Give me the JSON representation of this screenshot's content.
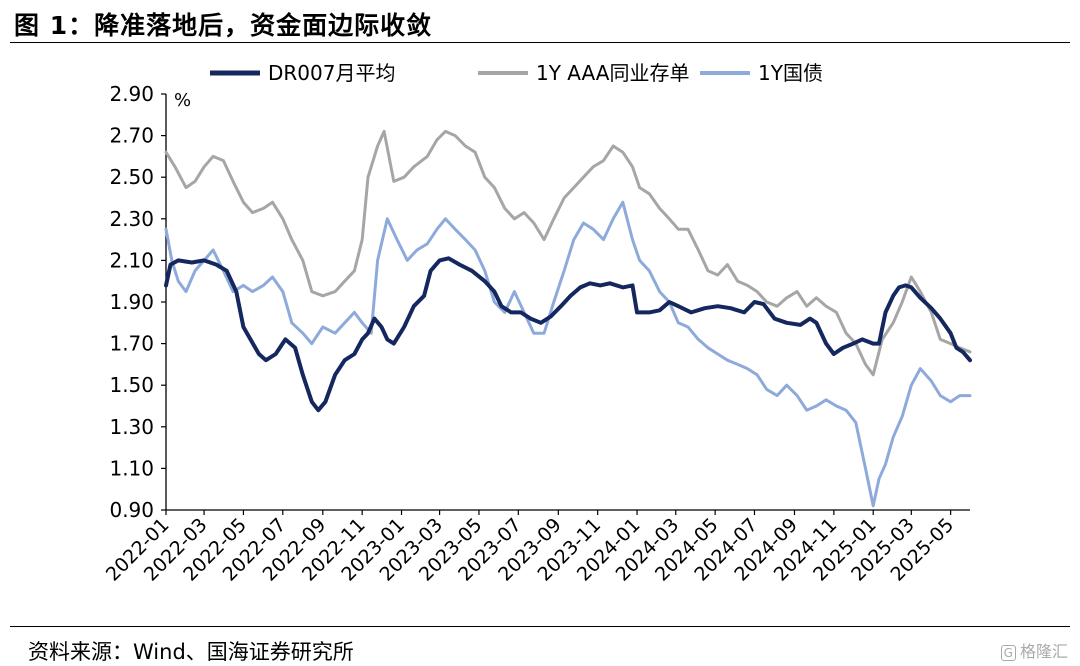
{
  "figure": {
    "title": "图 1：降准落地后，资金面边际收敛",
    "source": "资料来源：Wind、国海证券研究所",
    "watermark_text": "格隆汇",
    "watermark_icon": "g-logo-icon"
  },
  "chart_data": {
    "type": "line",
    "unit_label": "%",
    "ylim": [
      0.9,
      2.9
    ],
    "yticks": [
      "2.90",
      "2.70",
      "2.50",
      "2.30",
      "2.10",
      "1.90",
      "1.70",
      "1.50",
      "1.30",
      "1.10",
      "0.90"
    ],
    "xlim": [
      "2022-01-01",
      "2025-05-31"
    ],
    "xticks": [
      "2022-01",
      "2022-03",
      "2022-05",
      "2022-07",
      "2022-09",
      "2022-11",
      "2023-01",
      "2023-03",
      "2023-05",
      "2023-07",
      "2023-09",
      "2023-11",
      "2024-01",
      "2024-03",
      "2024-05",
      "2024-07",
      "2024-09",
      "2024-11",
      "2025-01",
      "2025-03",
      "2025-05"
    ],
    "grid": false,
    "legend": "top",
    "series": [
      {
        "name": "DR007月平均",
        "color": "#14285f",
        "width": 4,
        "points": [
          [
            "2022-01-01",
            1.98
          ],
          [
            "2022-01-08",
            2.08
          ],
          [
            "2022-01-20",
            2.1
          ],
          [
            "2022-02-10",
            2.09
          ],
          [
            "2022-03-01",
            2.1
          ],
          [
            "2022-03-20",
            2.08
          ],
          [
            "2022-04-05",
            2.05
          ],
          [
            "2022-04-20",
            1.95
          ],
          [
            "2022-05-01",
            1.78
          ],
          [
            "2022-05-12",
            1.72
          ],
          [
            "2022-05-25",
            1.65
          ],
          [
            "2022-06-05",
            1.62
          ],
          [
            "2022-06-20",
            1.65
          ],
          [
            "2022-07-05",
            1.72
          ],
          [
            "2022-07-20",
            1.68
          ],
          [
            "2022-08-01",
            1.55
          ],
          [
            "2022-08-15",
            1.42
          ],
          [
            "2022-08-25",
            1.38
          ],
          [
            "2022-09-05",
            1.42
          ],
          [
            "2022-09-20",
            1.55
          ],
          [
            "2022-10-05",
            1.62
          ],
          [
            "2022-10-20",
            1.65
          ],
          [
            "2022-11-01",
            1.72
          ],
          [
            "2022-11-10",
            1.75
          ],
          [
            "2022-11-20",
            1.82
          ],
          [
            "2022-12-01",
            1.78
          ],
          [
            "2022-12-10",
            1.72
          ],
          [
            "2022-12-20",
            1.7
          ],
          [
            "2023-01-05",
            1.78
          ],
          [
            "2023-01-20",
            1.88
          ],
          [
            "2023-02-05",
            1.93
          ],
          [
            "2023-02-15",
            2.05
          ],
          [
            "2023-03-01",
            2.1
          ],
          [
            "2023-03-15",
            2.11
          ],
          [
            "2023-04-01",
            2.08
          ],
          [
            "2023-04-20",
            2.05
          ],
          [
            "2023-05-10",
            2.0
          ],
          [
            "2023-05-25",
            1.95
          ],
          [
            "2023-06-05",
            1.88
          ],
          [
            "2023-06-20",
            1.85
          ],
          [
            "2023-07-05",
            1.85
          ],
          [
            "2023-07-20",
            1.82
          ],
          [
            "2023-08-05",
            1.8
          ],
          [
            "2023-08-20",
            1.83
          ],
          [
            "2023-09-05",
            1.88
          ],
          [
            "2023-09-20",
            1.93
          ],
          [
            "2023-10-05",
            1.97
          ],
          [
            "2023-10-20",
            1.99
          ],
          [
            "2023-11-05",
            1.98
          ],
          [
            "2023-11-20",
            1.99
          ],
          [
            "2023-12-10",
            1.97
          ],
          [
            "2023-12-25",
            1.98
          ],
          [
            "2024-01-01",
            1.85
          ],
          [
            "2024-01-20",
            1.85
          ],
          [
            "2024-02-05",
            1.86
          ],
          [
            "2024-02-20",
            1.9
          ],
          [
            "2024-03-05",
            1.88
          ],
          [
            "2024-03-25",
            1.85
          ],
          [
            "2024-04-15",
            1.87
          ],
          [
            "2024-05-05",
            1.88
          ],
          [
            "2024-05-25",
            1.87
          ],
          [
            "2024-06-15",
            1.85
          ],
          [
            "2024-07-01",
            1.9
          ],
          [
            "2024-07-15",
            1.89
          ],
          [
            "2024-08-01",
            1.82
          ],
          [
            "2024-08-20",
            1.8
          ],
          [
            "2024-09-10",
            1.79
          ],
          [
            "2024-09-25",
            1.82
          ],
          [
            "2024-10-05",
            1.8
          ],
          [
            "2024-10-20",
            1.7
          ],
          [
            "2024-11-01",
            1.65
          ],
          [
            "2024-11-15",
            1.68
          ],
          [
            "2024-12-01",
            1.7
          ],
          [
            "2024-12-15",
            1.72
          ],
          [
            "2025-01-01",
            1.7
          ],
          [
            "2025-01-10",
            1.7
          ],
          [
            "2025-01-20",
            1.85
          ],
          [
            "2025-02-01",
            1.93
          ],
          [
            "2025-02-10",
            1.97
          ],
          [
            "2025-02-20",
            1.98
          ],
          [
            "2025-03-01",
            1.97
          ],
          [
            "2025-03-15",
            1.92
          ],
          [
            "2025-04-01",
            1.87
          ],
          [
            "2025-04-15",
            1.82
          ],
          [
            "2025-05-01",
            1.75
          ],
          [
            "2025-05-10",
            1.68
          ],
          [
            "2025-05-20",
            1.66
          ],
          [
            "2025-05-31",
            1.62
          ]
        ]
      },
      {
        "name": "1Y AAA同业存单",
        "color": "#a6a6a6",
        "width": 3,
        "points": [
          [
            "2022-01-01",
            2.62
          ],
          [
            "2022-01-15",
            2.55
          ],
          [
            "2022-02-01",
            2.45
          ],
          [
            "2022-02-15",
            2.48
          ],
          [
            "2022-03-01",
            2.55
          ],
          [
            "2022-03-15",
            2.6
          ],
          [
            "2022-03-31",
            2.58
          ],
          [
            "2022-04-15",
            2.48
          ],
          [
            "2022-05-01",
            2.38
          ],
          [
            "2022-05-15",
            2.33
          ],
          [
            "2022-06-01",
            2.35
          ],
          [
            "2022-06-15",
            2.38
          ],
          [
            "2022-07-01",
            2.3
          ],
          [
            "2022-07-15",
            2.2
          ],
          [
            "2022-08-01",
            2.1
          ],
          [
            "2022-08-15",
            1.95
          ],
          [
            "2022-09-01",
            1.93
          ],
          [
            "2022-09-20",
            1.95
          ],
          [
            "2022-10-05",
            2.0
          ],
          [
            "2022-10-20",
            2.05
          ],
          [
            "2022-11-01",
            2.2
          ],
          [
            "2022-11-10",
            2.5
          ],
          [
            "2022-11-25",
            2.65
          ],
          [
            "2022-12-05",
            2.72
          ],
          [
            "2022-12-20",
            2.48
          ],
          [
            "2023-01-05",
            2.5
          ],
          [
            "2023-01-20",
            2.55
          ],
          [
            "2023-02-10",
            2.6
          ],
          [
            "2023-02-25",
            2.68
          ],
          [
            "2023-03-10",
            2.72
          ],
          [
            "2023-03-25",
            2.7
          ],
          [
            "2023-04-10",
            2.65
          ],
          [
            "2023-04-25",
            2.62
          ],
          [
            "2023-05-10",
            2.5
          ],
          [
            "2023-05-25",
            2.45
          ],
          [
            "2023-06-10",
            2.35
          ],
          [
            "2023-06-25",
            2.3
          ],
          [
            "2023-07-10",
            2.33
          ],
          [
            "2023-07-25",
            2.28
          ],
          [
            "2023-08-10",
            2.2
          ],
          [
            "2023-08-25",
            2.3
          ],
          [
            "2023-09-10",
            2.4
          ],
          [
            "2023-09-25",
            2.45
          ],
          [
            "2023-10-10",
            2.5
          ],
          [
            "2023-10-25",
            2.55
          ],
          [
            "2023-11-10",
            2.58
          ],
          [
            "2023-11-25",
            2.65
          ],
          [
            "2023-12-10",
            2.62
          ],
          [
            "2023-12-25",
            2.55
          ],
          [
            "2024-01-05",
            2.45
          ],
          [
            "2024-01-20",
            2.42
          ],
          [
            "2024-02-05",
            2.35
          ],
          [
            "2024-02-20",
            2.3
          ],
          [
            "2024-03-05",
            2.25
          ],
          [
            "2024-03-20",
            2.25
          ],
          [
            "2024-04-05",
            2.15
          ],
          [
            "2024-04-20",
            2.05
          ],
          [
            "2024-05-05",
            2.03
          ],
          [
            "2024-05-20",
            2.08
          ],
          [
            "2024-06-05",
            2.0
          ],
          [
            "2024-06-20",
            1.98
          ],
          [
            "2024-07-05",
            1.95
          ],
          [
            "2024-07-20",
            1.9
          ],
          [
            "2024-08-05",
            1.88
          ],
          [
            "2024-08-20",
            1.92
          ],
          [
            "2024-09-05",
            1.95
          ],
          [
            "2024-09-20",
            1.88
          ],
          [
            "2024-10-05",
            1.92
          ],
          [
            "2024-10-20",
            1.88
          ],
          [
            "2024-11-05",
            1.85
          ],
          [
            "2024-11-20",
            1.75
          ],
          [
            "2024-12-05",
            1.7
          ],
          [
            "2024-12-20",
            1.6
          ],
          [
            "2025-01-01",
            1.55
          ],
          [
            "2025-01-15",
            1.72
          ],
          [
            "2025-02-01",
            1.8
          ],
          [
            "2025-02-15",
            1.9
          ],
          [
            "2025-03-01",
            2.02
          ],
          [
            "2025-03-15",
            1.95
          ],
          [
            "2025-04-01",
            1.85
          ],
          [
            "2025-04-15",
            1.72
          ],
          [
            "2025-05-01",
            1.7
          ],
          [
            "2025-05-15",
            1.68
          ],
          [
            "2025-05-31",
            1.66
          ]
        ]
      },
      {
        "name": "1Y国债",
        "color": "#8eaadb",
        "width": 3,
        "points": [
          [
            "2022-01-01",
            2.25
          ],
          [
            "2022-01-10",
            2.1
          ],
          [
            "2022-01-20",
            2.0
          ],
          [
            "2022-02-01",
            1.95
          ],
          [
            "2022-02-15",
            2.05
          ],
          [
            "2022-03-01",
            2.1
          ],
          [
            "2022-03-15",
            2.15
          ],
          [
            "2022-03-31",
            2.05
          ],
          [
            "2022-04-15",
            1.95
          ],
          [
            "2022-05-01",
            1.98
          ],
          [
            "2022-05-15",
            1.95
          ],
          [
            "2022-06-01",
            1.98
          ],
          [
            "2022-06-15",
            2.02
          ],
          [
            "2022-07-01",
            1.95
          ],
          [
            "2022-07-15",
            1.8
          ],
          [
            "2022-08-01",
            1.75
          ],
          [
            "2022-08-15",
            1.7
          ],
          [
            "2022-09-01",
            1.78
          ],
          [
            "2022-09-20",
            1.75
          ],
          [
            "2022-10-05",
            1.8
          ],
          [
            "2022-10-20",
            1.85
          ],
          [
            "2022-11-01",
            1.8
          ],
          [
            "2022-11-15",
            1.75
          ],
          [
            "2022-11-25",
            2.1
          ],
          [
            "2022-12-10",
            2.3
          ],
          [
            "2022-12-25",
            2.2
          ],
          [
            "2023-01-10",
            2.1
          ],
          [
            "2023-01-25",
            2.15
          ],
          [
            "2023-02-10",
            2.18
          ],
          [
            "2023-02-25",
            2.25
          ],
          [
            "2023-03-10",
            2.3
          ],
          [
            "2023-03-25",
            2.25
          ],
          [
            "2023-04-10",
            2.2
          ],
          [
            "2023-04-25",
            2.15
          ],
          [
            "2023-05-10",
            2.05
          ],
          [
            "2023-05-25",
            1.9
          ],
          [
            "2023-06-10",
            1.85
          ],
          [
            "2023-06-25",
            1.95
          ],
          [
            "2023-07-10",
            1.85
          ],
          [
            "2023-07-25",
            1.75
          ],
          [
            "2023-08-10",
            1.75
          ],
          [
            "2023-08-25",
            1.9
          ],
          [
            "2023-09-10",
            2.05
          ],
          [
            "2023-09-25",
            2.2
          ],
          [
            "2023-10-10",
            2.28
          ],
          [
            "2023-10-25",
            2.25
          ],
          [
            "2023-11-10",
            2.2
          ],
          [
            "2023-11-25",
            2.3
          ],
          [
            "2023-12-10",
            2.38
          ],
          [
            "2023-12-25",
            2.2
          ],
          [
            "2024-01-05",
            2.1
          ],
          [
            "2024-01-20",
            2.05
          ],
          [
            "2024-02-05",
            1.95
          ],
          [
            "2024-02-20",
            1.9
          ],
          [
            "2024-03-05",
            1.8
          ],
          [
            "2024-03-20",
            1.78
          ],
          [
            "2024-04-05",
            1.72
          ],
          [
            "2024-04-20",
            1.68
          ],
          [
            "2024-05-05",
            1.65
          ],
          [
            "2024-05-20",
            1.62
          ],
          [
            "2024-06-05",
            1.6
          ],
          [
            "2024-06-20",
            1.58
          ],
          [
            "2024-07-05",
            1.55
          ],
          [
            "2024-07-20",
            1.48
          ],
          [
            "2024-08-05",
            1.45
          ],
          [
            "2024-08-20",
            1.5
          ],
          [
            "2024-09-05",
            1.45
          ],
          [
            "2024-09-20",
            1.38
          ],
          [
            "2024-10-05",
            1.4
          ],
          [
            "2024-10-20",
            1.43
          ],
          [
            "2024-11-05",
            1.4
          ],
          [
            "2024-11-20",
            1.38
          ],
          [
            "2024-12-05",
            1.32
          ],
          [
            "2024-12-20",
            1.1
          ],
          [
            "2025-01-01",
            0.92
          ],
          [
            "2025-01-10",
            1.05
          ],
          [
            "2025-01-20",
            1.12
          ],
          [
            "2025-02-01",
            1.25
          ],
          [
            "2025-02-15",
            1.35
          ],
          [
            "2025-03-01",
            1.5
          ],
          [
            "2025-03-15",
            1.58
          ],
          [
            "2025-04-01",
            1.52
          ],
          [
            "2025-04-15",
            1.45
          ],
          [
            "2025-05-01",
            1.42
          ],
          [
            "2025-05-15",
            1.45
          ],
          [
            "2025-05-31",
            1.45
          ]
        ]
      }
    ]
  }
}
